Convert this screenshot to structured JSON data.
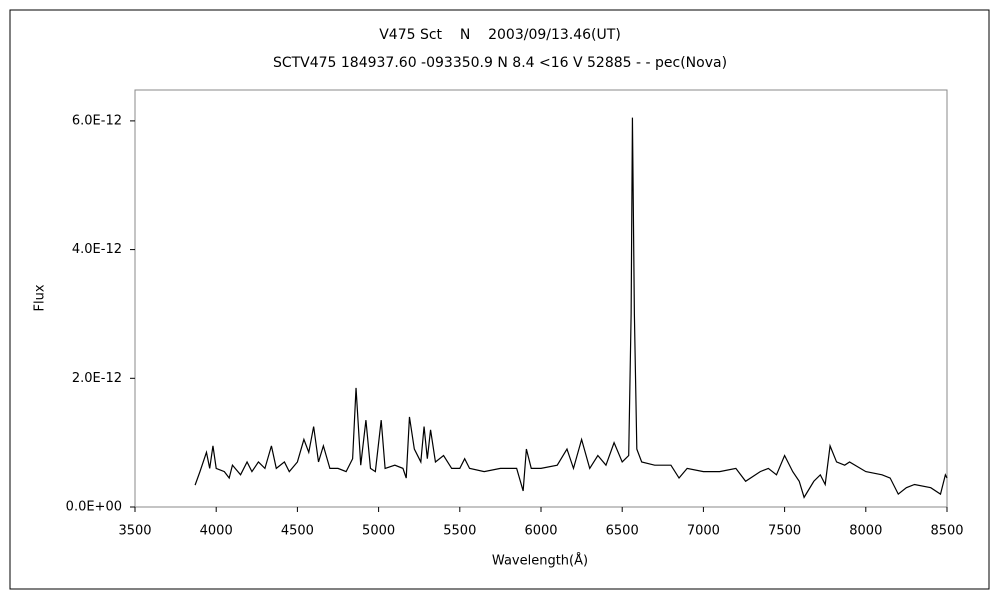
{
  "chart_data": {
    "type": "line",
    "title": "V475 Sct    N    2003/09/13.46(UT)",
    "subtitle": "SCTV475 184937.60 -093350.9 N 8.4 <16 V 52885 - - pec(Nova)",
    "x_label": "Wavelength(Å)",
    "y_label": "Flux",
    "color": "#000000",
    "x": [
      3870,
      3900,
      3940,
      3960,
      3980,
      4000,
      4050,
      4080,
      4100,
      4150,
      4190,
      4220,
      4260,
      4300,
      4340,
      4370,
      4420,
      4450,
      4500,
      4540,
      4570,
      4600,
      4630,
      4660,
      4700,
      4750,
      4800,
      4840,
      4861,
      4890,
      4922,
      4950,
      4980,
      5016,
      5040,
      5100,
      5150,
      5170,
      5190,
      5220,
      5260,
      5280,
      5300,
      5320,
      5350,
      5400,
      5450,
      5500,
      5530,
      5560,
      5650,
      5750,
      5850,
      5890,
      5910,
      5940,
      6000,
      6100,
      6160,
      6200,
      6250,
      6300,
      6350,
      6400,
      6450,
      6500,
      6540,
      6555,
      6563,
      6575,
      6590,
      6620,
      6700,
      6800,
      6850,
      6900,
      7000,
      7100,
      7200,
      7260,
      7350,
      7400,
      7450,
      7500,
      7550,
      7590,
      7620,
      7680,
      7720,
      7750,
      7780,
      7820,
      7870,
      7900,
      8000,
      8100,
      8150,
      8200,
      8250,
      8300,
      8400,
      8460,
      8490,
      8500
    ],
    "values": [
      3.4e-13,
      5.5e-13,
      8.5e-13,
      6e-13,
      9.5e-13,
      6e-13,
      5.5e-13,
      4.5e-13,
      6.5e-13,
      5e-13,
      7e-13,
      5.5e-13,
      7e-13,
      6e-13,
      9.5e-13,
      6e-13,
      7e-13,
      5.5e-13,
      7e-13,
      1.05e-12,
      8.5e-13,
      1.25e-12,
      7e-13,
      9.5e-13,
      6e-13,
      6e-13,
      5.5e-13,
      7.5e-13,
      1.85e-12,
      6.5e-13,
      1.35e-12,
      6e-13,
      5.5e-13,
      1.35e-12,
      6e-13,
      6.5e-13,
      6e-13,
      4.5e-13,
      1.4e-12,
      9e-13,
      7e-13,
      1.25e-12,
      7.5e-13,
      1.2e-12,
      7e-13,
      8e-13,
      6e-13,
      6e-13,
      7.5e-13,
      6e-13,
      5.5e-13,
      6e-13,
      6e-13,
      2.5e-13,
      9e-13,
      6e-13,
      6e-13,
      6.5e-13,
      9e-13,
      6e-13,
      1.05e-12,
      6e-13,
      8e-13,
      6.5e-13,
      1e-12,
      7e-13,
      8e-13,
      3e-12,
      6.05e-12,
      3e-12,
      9e-13,
      7e-13,
      6.5e-13,
      6.5e-13,
      4.5e-13,
      6e-13,
      5.5e-13,
      5.5e-13,
      6e-13,
      4e-13,
      5.5e-13,
      6e-13,
      5e-13,
      8e-13,
      5.5e-13,
      4e-13,
      1.5e-13,
      4e-13,
      5e-13,
      3.5e-13,
      9.5e-13,
      7e-13,
      6.5e-13,
      7e-13,
      5.5e-13,
      5e-13,
      4.5e-13,
      2e-13,
      3e-13,
      3.5e-13,
      3e-13,
      2e-13,
      5e-13,
      4.5e-13
    ],
    "xlim": [
      3500,
      8500
    ],
    "xticks": [
      3500,
      4000,
      4500,
      5000,
      5500,
      6000,
      6500,
      7000,
      7500,
      8000,
      8500
    ],
    "ylim": [
      0,
      6.48e-12
    ],
    "yticks": [
      {
        "value": 0,
        "label": "0.0E+00"
      },
      {
        "value": 2e-12,
        "label": "2.0E-12"
      },
      {
        "value": 4e-12,
        "label": "4.0E-12"
      },
      {
        "value": 6e-12,
        "label": "6.0E-12"
      }
    ]
  }
}
